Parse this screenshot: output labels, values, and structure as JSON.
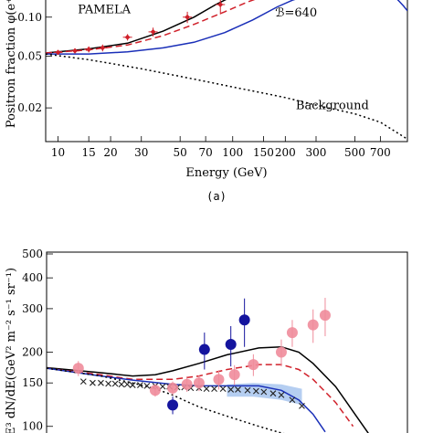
{
  "caption_a": "(a)",
  "chart_data": [
    {
      "type": "line",
      "xscale": "log",
      "yscale": "log",
      "xlabel": "Energy (GeV)",
      "ylabel": "Positron fraction φ(e⁺)",
      "xlim": [
        8.5,
        1000
      ],
      "ylim": [
        0.011,
        0.14
      ],
      "xticks": [
        10,
        15,
        20,
        30,
        50,
        70,
        100,
        150,
        200,
        300,
        500,
        700
      ],
      "xtick_labels": [
        "10",
        "15",
        "20",
        "30",
        "50",
        "70",
        "100",
        "150",
        "200",
        "300",
        "500",
        "700"
      ],
      "yticks": [
        0.02,
        0.05,
        0.1
      ],
      "ytick_labels": [
        "0.02",
        "0.05",
        "0.10"
      ],
      "annotations": [
        {
          "text": "PAMELA",
          "x": 13,
          "y": 0.107
        },
        {
          "text": "ℬ=640",
          "x": 175,
          "y": 0.101
        },
        {
          "text": "Background",
          "x": 230,
          "y": 0.0196
        }
      ],
      "points": {
        "name": "PAMELA",
        "color": "#d0202a",
        "x": [
          10,
          12.5,
          15,
          18,
          25,
          35,
          55,
          85
        ],
        "y": [
          0.0535,
          0.055,
          0.0565,
          0.058,
          0.07,
          0.077,
          0.1,
          0.125
        ],
        "yerr": [
          0.002,
          0.0025,
          0.003,
          0.0035,
          0.004,
          0.006,
          0.01,
          0.02
        ]
      },
      "series": [
        {
          "color": "#000000",
          "style": "solid",
          "x": [
            8.5,
            15,
            25,
            40,
            60,
            80,
            100,
            120
          ],
          "y": [
            0.053,
            0.057,
            0.063,
            0.078,
            0.1,
            0.125,
            0.145,
            0.165
          ]
        },
        {
          "color": "#d0202a",
          "style": "dashed",
          "x": [
            8.5,
            15,
            25,
            40,
            60,
            90,
            120,
            150
          ],
          "y": [
            0.053,
            0.056,
            0.061,
            0.072,
            0.088,
            0.11,
            0.13,
            0.145
          ]
        },
        {
          "color": "#1a2fb8",
          "style": "solid",
          "x": [
            8.5,
            15,
            25,
            40,
            60,
            90,
            130,
            180,
            220,
            260
          ],
          "y": [
            0.052,
            0.052,
            0.054,
            0.058,
            0.064,
            0.076,
            0.095,
            0.12,
            0.135,
            0.145
          ]
        },
        {
          "color": "#000000",
          "style": "dotted",
          "x": [
            8.5,
            15,
            20,
            30,
            50,
            70,
            100,
            150,
            200,
            300,
            500,
            700,
            1000
          ],
          "y": [
            0.052,
            0.047,
            0.044,
            0.04,
            0.035,
            0.032,
            0.029,
            0.026,
            0.024,
            0.021,
            0.018,
            0.0155,
            0.0115
          ]
        },
        {
          "color": "#1a2fb8",
          "style": "solid",
          "x": [
            840,
            900,
            950,
            1000
          ],
          "y": [
            0.145,
            0.132,
            0.122,
            0.112
          ]
        }
      ]
    },
    {
      "type": "line",
      "xscale": "log",
      "yscale": "log",
      "ylabel": "E³ dN/dE(GeV² m⁻² s⁻¹ sr⁻¹)",
      "xlim": [
        10,
        1000
      ],
      "ylim": [
        94,
        500
      ],
      "yticks": [
        100,
        150,
        200,
        300,
        400,
        500
      ],
      "ytick_labels": [
        "100",
        "150",
        "200",
        "300",
        "400",
        "500"
      ],
      "points_pink": {
        "color": "#ef8c9b",
        "x": [
          15,
          40,
          50,
          60,
          70,
          90,
          110,
          140,
          200,
          230,
          300,
          350
        ],
        "y": [
          172,
          140,
          143,
          148,
          150,
          155,
          162,
          178,
          200,
          240,
          258,
          282
        ],
        "yerr": [
          12,
          8,
          9,
          10,
          11,
          14,
          15,
          18,
          25,
          30,
          40,
          50
        ]
      },
      "points_blue": {
        "color": "#14149e",
        "x": [
          50,
          75,
          105,
          125
        ],
        "y": [
          122,
          205,
          215,
          270
        ],
        "yerr": [
          10,
          35,
          40,
          60
        ]
      },
      "band": {
        "color": "#a8c6ee",
        "x": [
          100,
          140,
          200,
          260
        ],
        "lo": [
          132,
          132,
          128,
          122
        ],
        "hi": [
          148,
          150,
          148,
          142
        ]
      },
      "crosses": {
        "x": [
          16,
          18,
          20,
          22,
          24,
          26,
          28,
          30,
          33,
          36,
          40,
          44,
          48,
          53,
          58,
          63,
          70,
          77,
          85,
          95,
          105,
          115,
          130,
          145,
          160,
          180,
          200,
          230,
          260
        ],
        "y": [
          152,
          150,
          150,
          149,
          149,
          148,
          148,
          147,
          147,
          146,
          146,
          145,
          145,
          144,
          144,
          143,
          143,
          142,
          142,
          142,
          141,
          141,
          140,
          139,
          138,
          136,
          134,
          128,
          121
        ]
      },
      "series": [
        {
          "color": "#000000",
          "style": "solid",
          "x": [
            10,
            20,
            30,
            40,
            50,
            70,
            100,
            150,
            200,
            250,
            300,
            400,
            500,
            600,
            700
          ],
          "y": [
            173,
            165,
            160,
            162,
            168,
            180,
            195,
            208,
            210,
            200,
            180,
            145,
            115,
            95,
            80
          ]
        },
        {
          "color": "#d0202a",
          "style": "dashed",
          "x": [
            10,
            20,
            30,
            50,
            70,
            100,
            150,
            200,
            250,
            300,
            400,
            500
          ],
          "y": [
            172,
            162,
            155,
            155,
            160,
            170,
            178,
            178,
            170,
            155,
            125,
            100
          ]
        },
        {
          "color": "#1a2fb8",
          "style": "solid",
          "x": [
            10,
            20,
            30,
            50,
            70,
            100,
            150,
            200,
            250,
            300,
            350
          ],
          "y": [
            172,
            160,
            154,
            148,
            146,
            146,
            146,
            140,
            128,
            112,
            95
          ]
        },
        {
          "color": "#000000",
          "style": "dotted",
          "x": [
            10,
            20,
            30,
            40,
            50,
            60,
            70,
            100,
            150,
            200,
            300
          ],
          "y": [
            172,
            160,
            150,
            142,
            134,
            126,
            120,
            110,
            100,
            94,
            88
          ]
        }
      ]
    }
  ]
}
